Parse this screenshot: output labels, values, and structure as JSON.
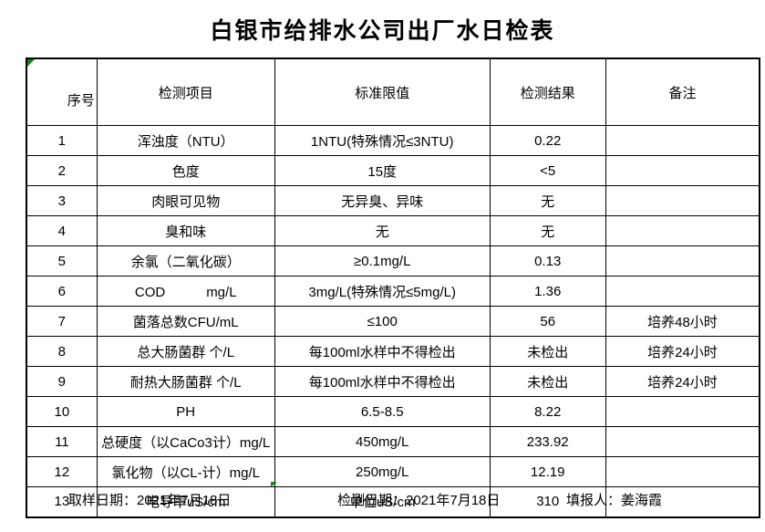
{
  "title": "白银市给排水公司出厂水日检表",
  "table": {
    "headers": [
      "序号",
      "检测项目",
      "标准限值",
      "检测结果",
      "备注"
    ],
    "rows": [
      {
        "seq": "1",
        "item": "浑浊度（NTU）",
        "limit": "1NTU(特殊情况≤3NTU)",
        "result": "0.22",
        "note": ""
      },
      {
        "seq": "2",
        "item": "色度",
        "limit": "15度",
        "result": "<5",
        "note": ""
      },
      {
        "seq": "3",
        "item": "肉眼可见物",
        "limit": "无异臭、异味",
        "result": "无",
        "note": ""
      },
      {
        "seq": "4",
        "item": "臭和味",
        "limit": "无",
        "result": "无",
        "note": ""
      },
      {
        "seq": "5",
        "item": "余氯（二氧化碳）",
        "limit": "≥0.1mg/L",
        "result": "0.13",
        "note": ""
      },
      {
        "seq": "6",
        "item": "COD　　　mg/L",
        "limit": "3mg/L(特殊情况≤5mg/L)",
        "result": "1.36",
        "note": ""
      },
      {
        "seq": "7",
        "item": "菌落总数CFU/mL",
        "limit": "≤100",
        "result": "56",
        "note": "培养48小时"
      },
      {
        "seq": "8",
        "item": "总大肠菌群 个/L",
        "limit": "每100ml水样中不得检出",
        "result": "未检出",
        "note": "培养24小时"
      },
      {
        "seq": "9",
        "item": "耐热大肠菌群 个/L",
        "limit": "每100ml水样中不得检出",
        "result": "未检出",
        "note": "培养24小时"
      },
      {
        "seq": "10",
        "item": "PH",
        "limit": "6.5-8.5",
        "result": "8.22",
        "note": ""
      },
      {
        "seq": "11",
        "item": "总硬度（以CaCo3计）mg/L",
        "limit": "450mg/L",
        "result": "233.92",
        "note": ""
      },
      {
        "seq": "12",
        "item": "氯化物（以CL-计）mg/L",
        "limit": "250mg/L",
        "result": "12.19",
        "note": ""
      },
      {
        "seq": "13",
        "item": "电导率uS/cm",
        "limit": "单位uS/cm",
        "result": "310",
        "note": ""
      }
    ]
  },
  "footer": {
    "sample_date": "取样日期：2021年7月18日",
    "test_date": "检测日期：2021年7月18日",
    "reporter": "填报人：姜海霞"
  },
  "icons": {
    "green_corner_marker": "excel-cell-flag-triangle",
    "green_bottom_marker": "excel-cell-flag-triangle"
  },
  "colors": {
    "marker_green": "#128a12",
    "border": "#000000",
    "background": "#ffffff",
    "text": "#000000"
  }
}
